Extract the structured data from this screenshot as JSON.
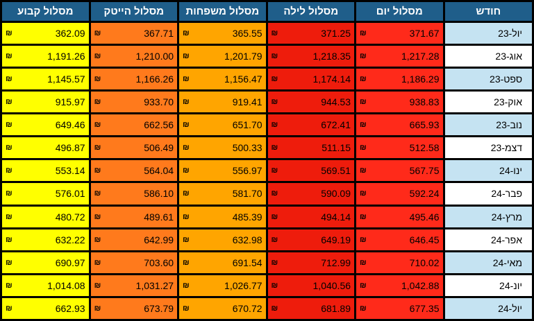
{
  "headers": [
    "חודש",
    "מסלול יום",
    "מסלול לילה",
    "מסלול משפחות",
    "מסלול הייטק",
    "מסלול קבוע"
  ],
  "currency": "₪",
  "column_colors": [
    "#ff2a1a",
    "#ee1c0c",
    "#ffa500",
    "#ff7a1c",
    "#ffff00"
  ],
  "rows": [
    {
      "month": "יול-23",
      "values": [
        "371.67",
        "371.25",
        "365.55",
        "367.71",
        "362.09"
      ]
    },
    {
      "month": "אוג-23",
      "values": [
        "1,217.28",
        "1,218.35",
        "1,201.79",
        "1,210.00",
        "1,191.26"
      ]
    },
    {
      "month": "ספט-23",
      "values": [
        "1,186.29",
        "1,174.14",
        "1,156.47",
        "1,166.26",
        "1,145.57"
      ]
    },
    {
      "month": "אוק-23",
      "values": [
        "938.83",
        "944.53",
        "919.41",
        "933.70",
        "915.97"
      ]
    },
    {
      "month": "נוב-23",
      "values": [
        "665.93",
        "672.41",
        "651.70",
        "662.56",
        "649.46"
      ]
    },
    {
      "month": "דצמ-23",
      "values": [
        "512.58",
        "511.15",
        "500.33",
        "506.49",
        "496.87"
      ]
    },
    {
      "month": "ינו-24",
      "values": [
        "567.75",
        "569.51",
        "556.97",
        "564.04",
        "553.14"
      ]
    },
    {
      "month": "פבר-24",
      "values": [
        "592.24",
        "590.09",
        "581.70",
        "586.10",
        "576.01"
      ]
    },
    {
      "month": "מרץ-24",
      "values": [
        "495.46",
        "494.14",
        "485.39",
        "489.61",
        "480.72"
      ]
    },
    {
      "month": "אפר-24",
      "values": [
        "646.45",
        "649.19",
        "632.98",
        "642.99",
        "632.22"
      ]
    },
    {
      "month": "מאי-24",
      "values": [
        "710.02",
        "712.99",
        "691.54",
        "703.60",
        "690.97"
      ]
    },
    {
      "month": "יונ-24",
      "values": [
        "1,042.88",
        "1,040.56",
        "1,026.77",
        "1,031.27",
        "1,014.08"
      ]
    },
    {
      "month": "יול-24",
      "values": [
        "677.35",
        "681.89",
        "670.72",
        "673.79",
        "662.93"
      ]
    }
  ]
}
